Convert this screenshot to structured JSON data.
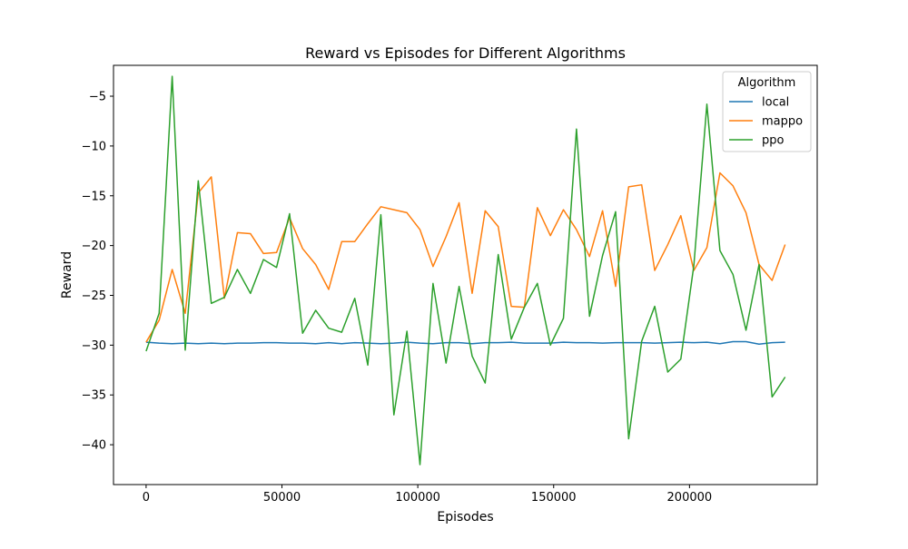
{
  "chart_data": {
    "type": "line",
    "title": "Reward vs Episodes for Different Algorithms",
    "xlabel": "Episodes",
    "ylabel": "Reward",
    "xlim": [
      -12000,
      247000
    ],
    "ylim": [
      -44.0,
      -1.9
    ],
    "xticks": [
      0,
      50000,
      100000,
      150000,
      200000
    ],
    "yticks": [
      -40,
      -35,
      -30,
      -25,
      -20,
      -15,
      -10,
      -5
    ],
    "grid": false,
    "legend": {
      "title": "Algorithm",
      "placement": "top-right"
    },
    "x": [
      0,
      4800,
      9600,
      14400,
      19200,
      24000,
      28800,
      33600,
      38400,
      43200,
      48000,
      52800,
      57600,
      62400,
      67200,
      72000,
      76800,
      81600,
      86400,
      91200,
      96000,
      100800,
      105600,
      110400,
      115200,
      120000,
      124800,
      129600,
      134400,
      139200,
      144000,
      148800,
      153600,
      158400,
      163200,
      168000,
      172800,
      177600,
      182400,
      187200,
      192000,
      196800,
      201600,
      206400,
      211200,
      216000,
      220800,
      225600,
      230400,
      235200
    ],
    "series": [
      {
        "name": "local",
        "color": "#1f77b4",
        "values": [
          -29.7,
          -29.8,
          -29.85,
          -29.8,
          -29.85,
          -29.8,
          -29.85,
          -29.8,
          -29.8,
          -29.75,
          -29.75,
          -29.8,
          -29.8,
          -29.85,
          -29.75,
          -29.85,
          -29.75,
          -29.8,
          -29.85,
          -29.8,
          -29.7,
          -29.8,
          -29.85,
          -29.75,
          -29.75,
          -29.85,
          -29.75,
          -29.75,
          -29.7,
          -29.8,
          -29.8,
          -29.8,
          -29.7,
          -29.75,
          -29.75,
          -29.8,
          -29.75,
          -29.75,
          -29.75,
          -29.8,
          -29.75,
          -29.7,
          -29.75,
          -29.7,
          -29.85,
          -29.65,
          -29.65,
          -29.9,
          -29.75,
          -29.7
        ]
      },
      {
        "name": "mappo",
        "color": "#ff7f0e",
        "values": [
          -29.7,
          -27.5,
          -22.4,
          -26.8,
          -14.7,
          -13.1,
          -25.3,
          -18.7,
          -18.8,
          -20.8,
          -20.7,
          -17.2,
          -20.3,
          -21.9,
          -24.4,
          -19.6,
          -19.6,
          -17.8,
          -16.1,
          -16.4,
          -16.7,
          -18.4,
          -22.1,
          -19.1,
          -15.7,
          -24.8,
          -16.5,
          -18.1,
          -26.1,
          -26.2,
          -16.2,
          -19.0,
          -16.4,
          -18.4,
          -21.1,
          -16.5,
          -24.1,
          -14.1,
          -13.9,
          -22.5,
          -19.9,
          -17.0,
          -22.5,
          -20.2,
          -12.7,
          -14.0,
          -16.7,
          -21.9,
          -23.5,
          -19.9
        ]
      },
      {
        "name": "ppo",
        "color": "#2ca02c",
        "values": [
          -30.6,
          -26.8,
          -3.0,
          -30.5,
          -13.5,
          -25.8,
          -25.2,
          -22.4,
          -24.8,
          -21.4,
          -22.2,
          -16.8,
          -28.8,
          -26.5,
          -28.3,
          -28.7,
          -25.3,
          -32.0,
          -16.9,
          -37.0,
          -28.6,
          -42.0,
          -23.8,
          -31.8,
          -24.1,
          -31.1,
          -33.8,
          -20.9,
          -29.4,
          -26.2,
          -23.8,
          -30.0,
          -27.3,
          -8.3,
          -27.1,
          -21.0,
          -16.6,
          -39.4,
          -29.6,
          -26.1,
          -32.7,
          -31.4,
          -22.0,
          -5.8,
          -20.5,
          -22.9,
          -28.5,
          -21.9,
          -35.2,
          -33.2
        ]
      }
    ]
  }
}
